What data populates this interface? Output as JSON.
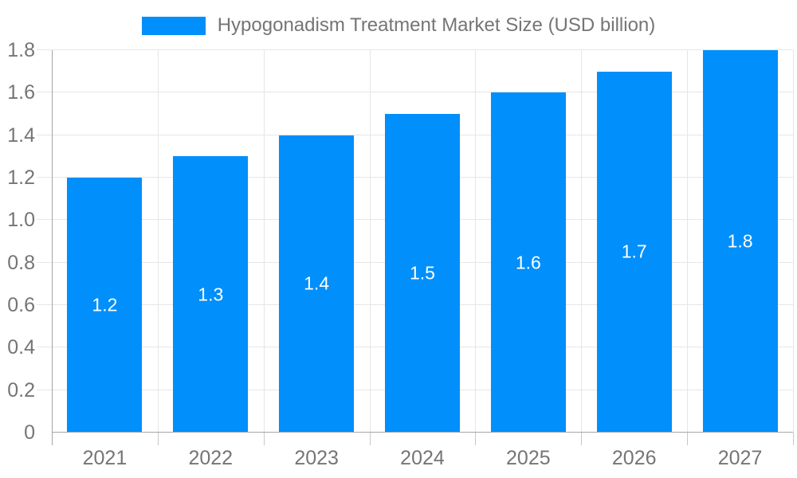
{
  "legend": {
    "swatch_color": "#008FFB"
  },
  "chart_data": {
    "type": "bar",
    "title": "Hypogonadism Treatment Market Size (USD billion)",
    "categories": [
      "2021",
      "2022",
      "2023",
      "2024",
      "2025",
      "2026",
      "2027"
    ],
    "values": [
      1.2,
      1.3,
      1.4,
      1.5,
      1.6,
      1.7,
      1.8
    ],
    "data_labels": [
      "1.2",
      "1.3",
      "1.4",
      "1.5",
      "1.6",
      "1.7",
      "1.8"
    ],
    "series": [
      {
        "name": "Hypogonadism Treatment Market Size (USD billion)",
        "values": [
          1.2,
          1.3,
          1.4,
          1.5,
          1.6,
          1.7,
          1.8
        ]
      }
    ],
    "xlabel": "",
    "ylabel": "",
    "ylim": [
      0,
      1.8
    ],
    "ytick_step": 0.2,
    "ytick_labels": [
      "0",
      "0.2",
      "0.4",
      "0.6",
      "0.8",
      "1.0",
      "1.2",
      "1.4",
      "1.6",
      "1.8"
    ],
    "grid": true,
    "legend_position": "top",
    "colors": {
      "bar": "#008FFB",
      "gridline": "#e6e6e6",
      "axis": "#a6a6a6",
      "axis_text": "#757575",
      "data_label_text": "#ffffff",
      "background": "#ffffff"
    }
  }
}
